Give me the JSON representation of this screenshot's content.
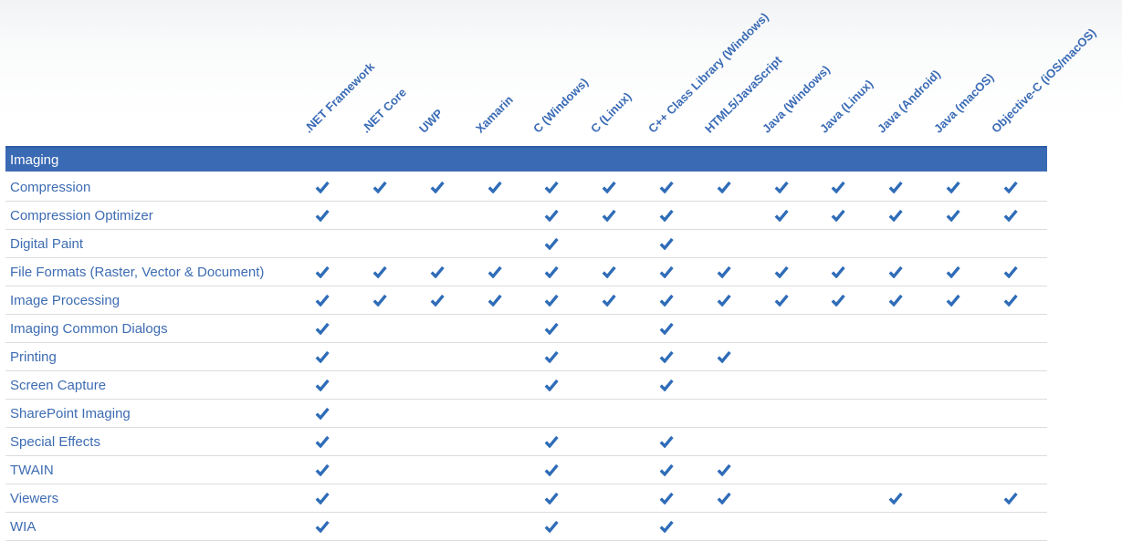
{
  "section": {
    "title": "Imaging"
  },
  "columns": [
    ".NET Framework",
    ".NET Core",
    "UWP",
    "Xamarin",
    "C (Windows)",
    "C (Linux)",
    "C++ Class Library (Windows)",
    "HTML5/JavaScript",
    "Java (Windows)",
    "Java (Linux)",
    "Java (Android)",
    "Java (macOS)",
    "Objective-C (iOS/macOS)"
  ],
  "rows": [
    {
      "label": "Compression",
      "checks": [
        1,
        1,
        1,
        1,
        1,
        1,
        1,
        1,
        1,
        1,
        1,
        1,
        1
      ]
    },
    {
      "label": "Compression Optimizer",
      "checks": [
        1,
        0,
        0,
        0,
        1,
        1,
        1,
        0,
        1,
        1,
        1,
        1,
        1
      ]
    },
    {
      "label": "Digital Paint",
      "checks": [
        0,
        0,
        0,
        0,
        1,
        0,
        1,
        0,
        0,
        0,
        0,
        0,
        0
      ]
    },
    {
      "label": "File Formats (Raster, Vector & Document)",
      "checks": [
        1,
        1,
        1,
        1,
        1,
        1,
        1,
        1,
        1,
        1,
        1,
        1,
        1
      ]
    },
    {
      "label": "Image Processing",
      "checks": [
        1,
        1,
        1,
        1,
        1,
        1,
        1,
        1,
        1,
        1,
        1,
        1,
        1
      ]
    },
    {
      "label": "Imaging Common Dialogs",
      "checks": [
        1,
        0,
        0,
        0,
        1,
        0,
        1,
        0,
        0,
        0,
        0,
        0,
        0
      ]
    },
    {
      "label": "Printing",
      "checks": [
        1,
        0,
        0,
        0,
        1,
        0,
        1,
        1,
        0,
        0,
        0,
        0,
        0
      ]
    },
    {
      "label": "Screen Capture",
      "checks": [
        1,
        0,
        0,
        0,
        1,
        0,
        1,
        0,
        0,
        0,
        0,
        0,
        0
      ]
    },
    {
      "label": "SharePoint Imaging",
      "checks": [
        1,
        0,
        0,
        0,
        0,
        0,
        0,
        0,
        0,
        0,
        0,
        0,
        0
      ]
    },
    {
      "label": "Special Effects",
      "checks": [
        1,
        0,
        0,
        0,
        1,
        0,
        1,
        0,
        0,
        0,
        0,
        0,
        0
      ]
    },
    {
      "label": "TWAIN",
      "checks": [
        1,
        0,
        0,
        0,
        1,
        0,
        1,
        1,
        0,
        0,
        0,
        0,
        0
      ]
    },
    {
      "label": "Viewers",
      "checks": [
        1,
        0,
        0,
        0,
        1,
        0,
        1,
        1,
        0,
        0,
        1,
        0,
        1
      ]
    },
    {
      "label": "WIA",
      "checks": [
        1,
        0,
        0,
        0,
        1,
        0,
        1,
        0,
        0,
        0,
        0,
        0,
        0
      ]
    }
  ],
  "icons": {
    "check": {
      "name": "check-icon",
      "glyph": "✔",
      "color": "#2f6cb8"
    }
  },
  "colors": {
    "banner_bg": "#3a6ab4",
    "banner_border": "#2d5da6",
    "banner_text": "#ffffff",
    "row_label": "#3d6cb2",
    "column_label": "#3a6bb5",
    "check": "#2f6cb8",
    "separator": "#dcdcdc"
  }
}
